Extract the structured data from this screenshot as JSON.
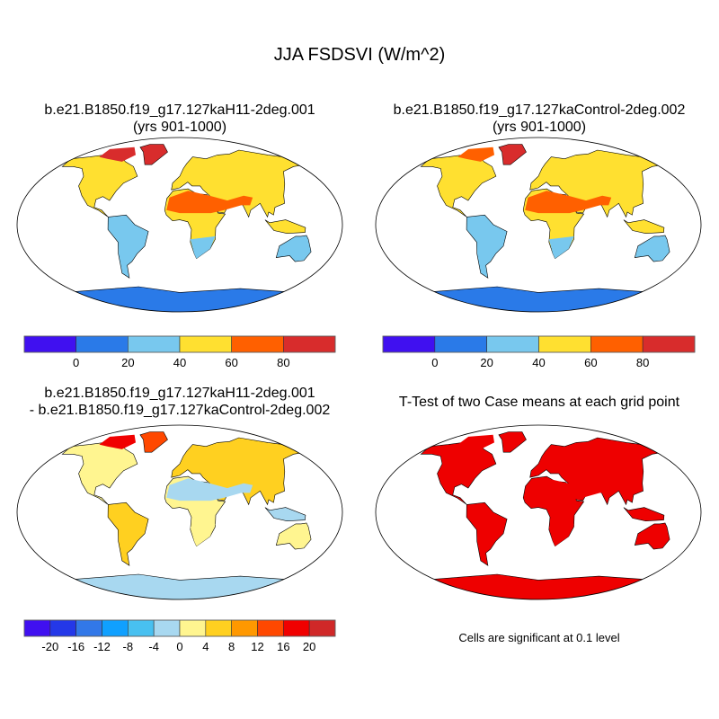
{
  "title": "JJA FSDSVI (W/m^2)",
  "panels": {
    "top_left": {
      "line1": "b.e21.B1850.f19_g17.127kaH11-2deg.001",
      "line2": "(yrs 901-1000)"
    },
    "top_right": {
      "line1": "b.e21.B1850.f19_g17.127kaControl-2deg.002",
      "line2": "(yrs 901-1000)"
    },
    "bottom_left": {
      "line1": "b.e21.B1850.f19_g17.127kaH11-2deg.001",
      "line2": "- b.e21.B1850.f19_g17.127kaControl-2deg.002"
    },
    "bottom_right": {
      "line1": "T-Test of two Case means at each grid point",
      "note": "Cells are significant at 0.1 level"
    }
  },
  "colorbar_abs": {
    "labels": [
      "0",
      "20",
      "40",
      "60",
      "80"
    ],
    "colors": [
      "#4010f0",
      "#2a7ae8",
      "#78c8ee",
      "#ffe030",
      "#ff6000",
      "#d82c2c"
    ]
  },
  "colorbar_diff": {
    "labels": [
      "-20",
      "-16",
      "-12",
      "-8",
      "-4",
      "0",
      "4",
      "8",
      "12",
      "16",
      "20"
    ],
    "colors": [
      "#4010f0",
      "#2438e8",
      "#3278e8",
      "#10a0ff",
      "#48c0f0",
      "#a8d8f0",
      "#fff590",
      "#ffd020",
      "#ff9800",
      "#ff4800",
      "#f00000",
      "#d02828"
    ]
  },
  "significance_color": "#ee0000"
}
